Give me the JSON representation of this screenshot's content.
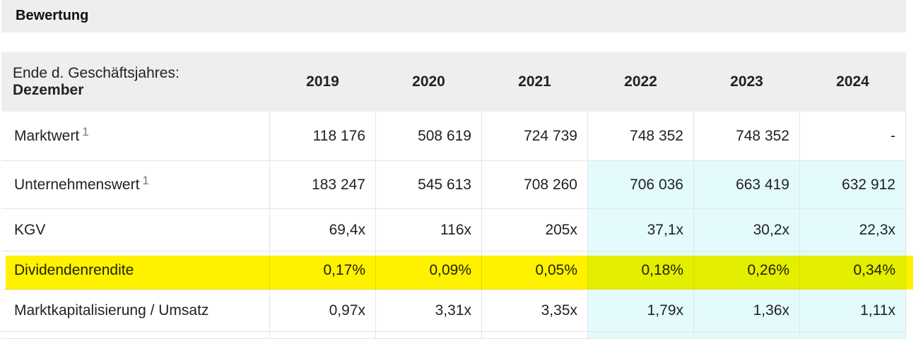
{
  "header": {
    "title": "Bewertung"
  },
  "table": {
    "header_label": [
      "Ende d. Geschäftsjahres:",
      "Dezember"
    ],
    "years": [
      "2019",
      "2020",
      "2021",
      "2022",
      "2023",
      "2024"
    ],
    "rows": [
      {
        "label": "Marktwert",
        "note": "1",
        "values": [
          "118 176",
          "508 619",
          "724 739",
          "748 352",
          "748 352",
          "-"
        ]
      },
      {
        "label": "Unternehmenswert",
        "note": "1",
        "values": [
          "183 247",
          "545 613",
          "708 260",
          "706 036",
          "663 419",
          "632 912"
        ]
      },
      {
        "label": "KGV",
        "values": [
          "69,4x",
          "116x",
          "205x",
          "37,1x",
          "30,2x",
          "22,3x"
        ]
      },
      {
        "label": "Dividendenrendite",
        "values": [
          "0,17%",
          "0,09%",
          "0,05%",
          "0,18%",
          "0,26%",
          "0,34%"
        ]
      },
      {
        "label": "Marktkapitalisierung / Umsatz",
        "values": [
          "0,97x",
          "3,31x",
          "3,35x",
          "1,79x",
          "1,36x",
          "1,11x"
        ]
      }
    ]
  }
}
